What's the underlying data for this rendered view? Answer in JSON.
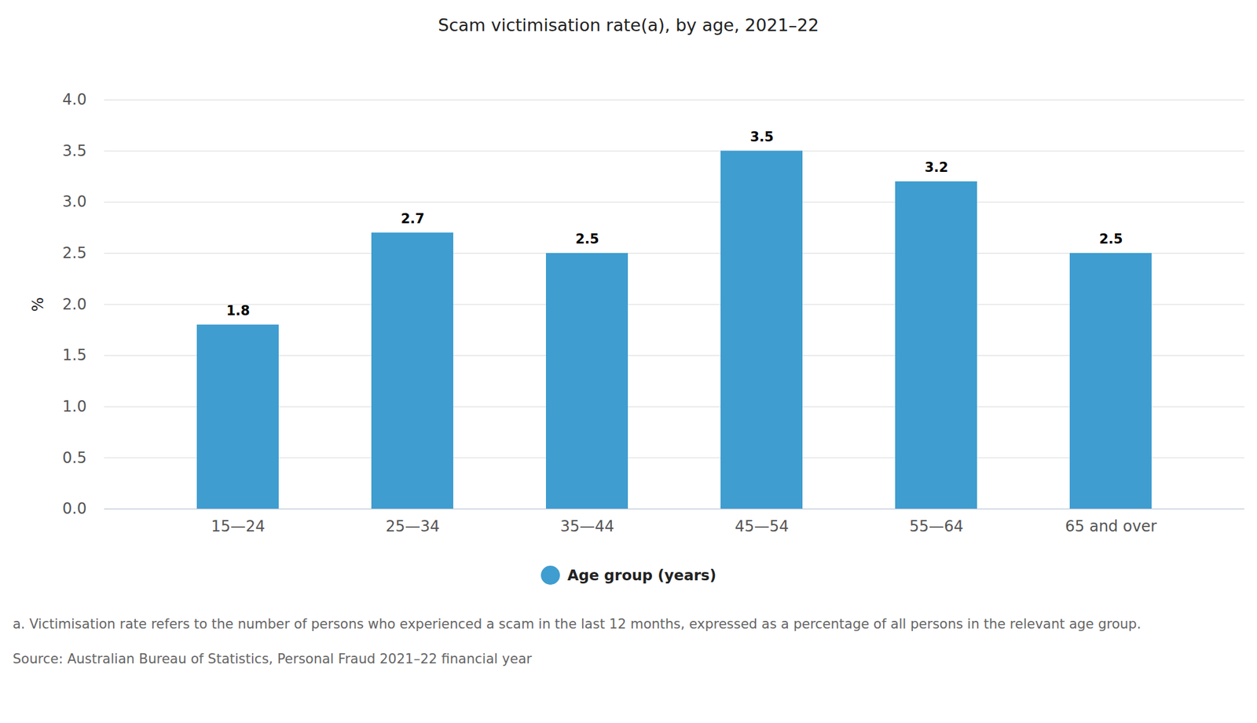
{
  "chart_data": {
    "type": "bar",
    "title": "Scam victimisation rate(a), by age, 2021–22",
    "y_label": "%",
    "categories": [
      "15—24",
      "25—34",
      "35—44",
      "45—54",
      "55—64",
      "65 and over"
    ],
    "series": [
      {
        "name": "Age group (years)",
        "color": "#3f9dd0",
        "values": [
          1.8,
          2.7,
          2.5,
          3.5,
          3.2,
          2.5
        ]
      }
    ],
    "ylim": [
      0,
      4
    ],
    "yticks": [
      0,
      0.5,
      1,
      1.5,
      2,
      2.5,
      3,
      3.5,
      4
    ],
    "grid": true,
    "data_labels": true,
    "legend": "bottom",
    "footnote": "a. Victimisation rate refers to the number of persons who experienced a scam in the last 12 months, expressed as a percentage of all persons in the relevant age group.",
    "source": "Source: Australian Bureau of Statistics, Personal Fraud 2021–22 financial year"
  }
}
